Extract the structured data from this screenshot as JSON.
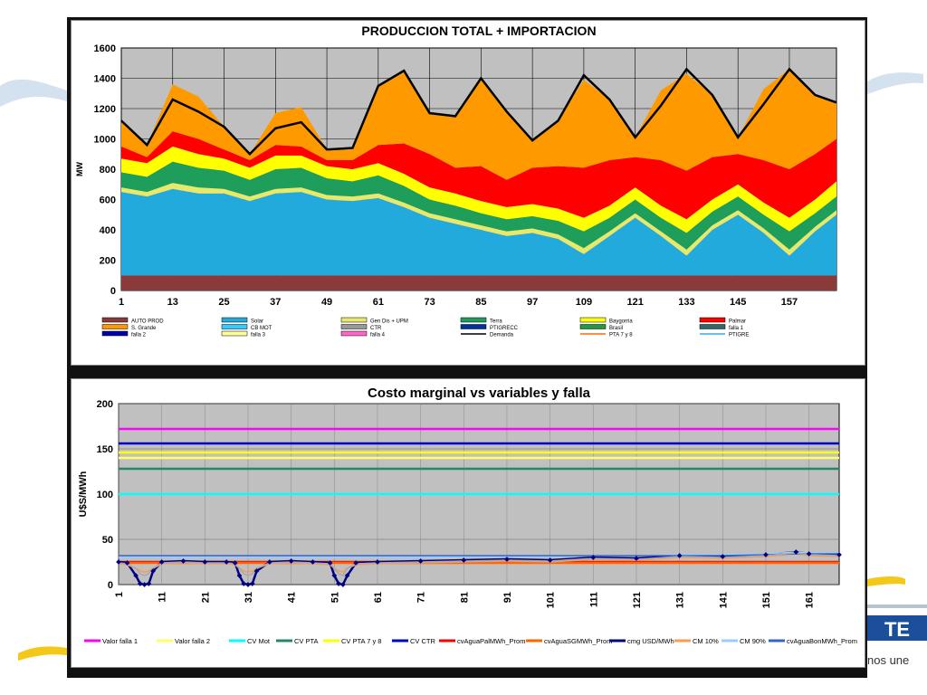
{
  "brand": {
    "tagline": "nos une",
    "logo_letters": "TE"
  },
  "chart_data": [
    {
      "type": "area",
      "stacked": true,
      "title": "PRODUCCION TOTAL + IMPORTACION",
      "ylabel": "MW",
      "xlabel": "",
      "xlim": [
        1,
        168
      ],
      "ylim": [
        0,
        1600
      ],
      "yticks": [
        0,
        200,
        400,
        600,
        800,
        1000,
        1200,
        1400,
        1600
      ],
      "xticks": [
        1,
        13,
        25,
        37,
        49,
        61,
        73,
        85,
        97,
        109,
        121,
        133,
        145,
        157
      ],
      "grid": true,
      "legend_position": "bottom",
      "legend": [
        "AUTO PROD",
        "Solar",
        "Gen Dis + UPM",
        "Terra",
        "Baygorria",
        "Palmar",
        "S. Grande",
        "CB MOT",
        "CTR",
        "PTIGRECC",
        "Brasil",
        "falla 1",
        "falla 2",
        "falla 3",
        "falla 4",
        "Demanda",
        "PTA 7 y 8",
        "PTIGRE"
      ],
      "legend_colors": [
        "#8B3A3A",
        "#22AADD",
        "#E8E86A",
        "#1E9E5A",
        "#FFFF00",
        "#FF0000",
        "#FF9900",
        "#33CCFF",
        "#999999",
        "#003399",
        "#229944",
        "#336666",
        "#0000AA",
        "#FFFF99",
        "#FF66CC",
        "#000000",
        "#FF6600",
        "#33AAEE"
      ],
      "legend_styles": [
        "box",
        "box",
        "box",
        "box",
        "box",
        "box",
        "box",
        "box",
        "box",
        "box",
        "box",
        "box",
        "box",
        "box",
        "box",
        "line",
        "line",
        "line"
      ],
      "x": [
        1,
        7,
        13,
        19,
        25,
        31,
        37,
        43,
        49,
        55,
        61,
        67,
        73,
        79,
        85,
        91,
        97,
        103,
        109,
        115,
        121,
        127,
        133,
        139,
        145,
        151,
        157,
        163,
        168
      ],
      "series": [
        {
          "name": "AUTO PROD",
          "color": "#8B3A3A",
          "values": [
            100,
            100,
            100,
            100,
            100,
            100,
            100,
            100,
            100,
            100,
            100,
            100,
            100,
            100,
            100,
            100,
            100,
            100,
            100,
            100,
            100,
            100,
            100,
            100,
            100,
            100,
            100,
            100,
            100
          ]
        },
        {
          "name": "Solar",
          "color": "#22AADD",
          "values": [
            550,
            520,
            570,
            540,
            540,
            490,
            540,
            550,
            500,
            490,
            510,
            450,
            380,
            340,
            300,
            260,
            280,
            240,
            140,
            260,
            380,
            260,
            130,
            300,
            400,
            280,
            130,
            290,
            400
          ]
        },
        {
          "name": "Gen Dis + UPM",
          "color": "#E8E86A",
          "values": [
            30,
            30,
            40,
            40,
            30,
            30,
            30,
            30,
            30,
            30,
            30,
            30,
            30,
            30,
            30,
            30,
            30,
            30,
            40,
            30,
            30,
            30,
            40,
            30,
            30,
            30,
            40,
            30,
            30
          ]
        },
        {
          "name": "Terra",
          "color": "#1E9E5A",
          "values": [
            100,
            100,
            140,
            130,
            120,
            110,
            130,
            130,
            110,
            100,
            120,
            110,
            90,
            90,
            80,
            80,
            80,
            90,
            110,
            90,
            90,
            90,
            110,
            90,
            90,
            90,
            120,
            90,
            90
          ]
        },
        {
          "name": "Baygorria",
          "color": "#FFFF00",
          "values": [
            90,
            90,
            100,
            90,
            80,
            80,
            90,
            80,
            80,
            80,
            80,
            80,
            80,
            80,
            80,
            80,
            80,
            80,
            90,
            80,
            80,
            80,
            90,
            80,
            80,
            80,
            90,
            90,
            100
          ]
        },
        {
          "name": "Palmar",
          "color": "#FF0000",
          "values": [
            80,
            40,
            100,
            100,
            60,
            50,
            70,
            60,
            40,
            60,
            120,
            200,
            220,
            170,
            230,
            180,
            240,
            280,
            330,
            300,
            200,
            300,
            320,
            280,
            200,
            280,
            320,
            300,
            280
          ]
        },
        {
          "name": "S. Grande",
          "color": "#FF9900",
          "values": [
            160,
            80,
            310,
            280,
            150,
            40,
            210,
            260,
            70,
            80,
            390,
            480,
            270,
            340,
            580,
            450,
            180,
            300,
            580,
            400,
            130,
            460,
            640,
            410,
            110,
            470,
            660,
            390,
            240
          ]
        }
      ],
      "demand": [
        1120,
        960,
        1260,
        1180,
        1080,
        900,
        1070,
        1110,
        930,
        940,
        1350,
        1450,
        1170,
        1150,
        1400,
        1180,
        990,
        1120,
        1420,
        1260,
        1010,
        1220,
        1460,
        1290,
        1010,
        1230,
        1460,
        1290,
        1240
      ]
    },
    {
      "type": "line",
      "title": "Costo marginal  vs variables y falla",
      "ylabel": "U$S/MWh",
      "xlabel": "",
      "xlim": [
        1,
        168
      ],
      "ylim": [
        0,
        200
      ],
      "yticks": [
        0,
        50,
        100,
        150,
        200
      ],
      "xticks": [
        1,
        11,
        21,
        31,
        41,
        51,
        61,
        71,
        81,
        91,
        101,
        111,
        121,
        131,
        141,
        151,
        161
      ],
      "grid": true,
      "legend_position": "bottom",
      "constants": [
        {
          "name": "Valor falla 1",
          "color": "#FF00FF",
          "value": 172
        },
        {
          "name": "Valor falla 2",
          "color": "#FFFF66",
          "value": 140
        },
        {
          "name": "CV Mot",
          "color": "#00FFFF",
          "value": 100
        },
        {
          "name": "CV PTA",
          "color": "#228866",
          "value": 128
        },
        {
          "name": "CV PTA 7 y 8",
          "color": "#FFFF00",
          "value": 146
        },
        {
          "name": "CV CTR",
          "color": "#0000CC",
          "value": 156
        },
        {
          "name": "cvAguaPalMWh_Prom",
          "color": "#FF0000",
          "value": 25
        },
        {
          "name": "cvAguaSGMWh_Prom",
          "color": "#FF6600",
          "value": 24
        }
      ],
      "x": [
        1,
        3,
        5,
        6,
        7,
        8,
        9,
        11,
        16,
        21,
        26,
        28,
        29,
        30,
        31,
        32,
        33,
        36,
        41,
        46,
        50,
        51,
        52,
        53,
        54,
        56,
        61,
        71,
        81,
        91,
        101,
        111,
        121,
        131,
        141,
        151,
        158,
        161,
        168
      ],
      "series": [
        {
          "name": "cmg USD/MWh",
          "color": "#000080",
          "values": [
            25,
            24,
            10,
            1,
            0,
            1,
            15,
            25,
            26,
            25,
            25,
            24,
            10,
            1,
            0,
            1,
            15,
            25,
            26,
            25,
            24,
            10,
            1,
            0,
            10,
            24,
            25,
            26,
            27,
            28,
            27,
            30,
            29,
            32,
            31,
            33,
            36,
            34,
            33
          ]
        },
        {
          "name": "CM 10%",
          "color": "#FF9955",
          "values": [
            23,
            22,
            18,
            15,
            14,
            15,
            18,
            23,
            24,
            23,
            23,
            22,
            18,
            15,
            14,
            15,
            18,
            23,
            24,
            23,
            22,
            18,
            15,
            14,
            18,
            22,
            23,
            24,
            25,
            26,
            25,
            28,
            27,
            30,
            29,
            31,
            34,
            32,
            31
          ]
        },
        {
          "name": "CM 90%",
          "color": "#99CCFF",
          "values": [
            30,
            30,
            30,
            30,
            30,
            30,
            30,
            30,
            30,
            30,
            30,
            30,
            30,
            30,
            30,
            30,
            30,
            30,
            30,
            30,
            30,
            30,
            30,
            30,
            30,
            30,
            30,
            30,
            31,
            31,
            31,
            32,
            32,
            33,
            33,
            34,
            36,
            35,
            35
          ]
        },
        {
          "name": "cvAguaBonMWh_Prom",
          "color": "#3366CC",
          "values": [
            32,
            32,
            32,
            32,
            32,
            32,
            32,
            32,
            32,
            32,
            32,
            32,
            32,
            32,
            32,
            32,
            32,
            32,
            32,
            32,
            32,
            32,
            32,
            32,
            32,
            32,
            32,
            32,
            32,
            32,
            32,
            32,
            32,
            32,
            32,
            33,
            34,
            34,
            34
          ]
        },
        {
          "name": "CV Mot (gris)",
          "legend": false,
          "color": "#AAAAAA",
          "values": [
            24,
            23,
            18,
            12,
            10,
            12,
            18,
            24,
            25,
            24,
            24,
            23,
            18,
            12,
            10,
            12,
            18,
            24,
            25,
            24,
            23,
            18,
            12,
            10,
            18,
            23,
            24,
            25,
            26,
            27,
            26,
            29,
            28,
            31,
            30,
            32,
            35,
            33,
            32
          ]
        }
      ],
      "legend": [
        "Valor falla 1",
        "Valor falla 2",
        "CV Mot",
        "CV PTA",
        "CV PTA 7 y 8",
        "CV CTR",
        "cvAguaPalMWh_Prom",
        "cvAguaSGMWh_Prom",
        "cmg USD/MWh",
        "CM 10%",
        "CM 90%",
        "cvAguaBonMWh_Prom"
      ],
      "legend_colors": [
        "#FF00FF",
        "#FFFF66",
        "#00FFFF",
        "#228866",
        "#FFFF00",
        "#0000CC",
        "#FF0000",
        "#FF6600",
        "#000080",
        "#FF9955",
        "#99CCFF",
        "#3366CC"
      ]
    }
  ]
}
